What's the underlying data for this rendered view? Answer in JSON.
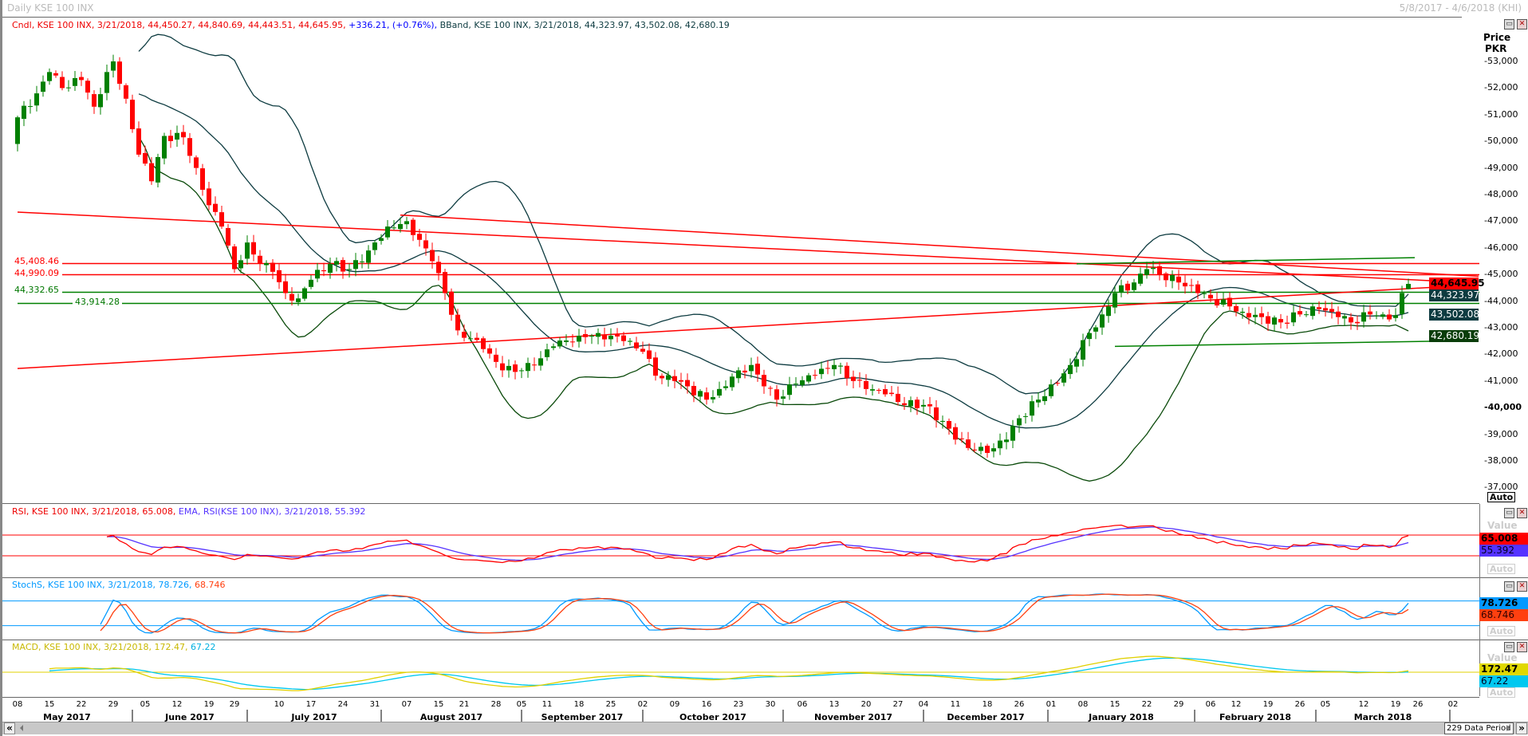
{
  "window": {
    "title": "Daily KSE 100 INX",
    "date_range": "5/8/2017 - 4/6/2018 (KHI)",
    "data_period": "229 Data Period",
    "scroll_left": "«",
    "scroll_right": "»",
    "minimize": "▭",
    "close": "✕"
  },
  "legend": {
    "candle": "Cndl, KSE 100 INX, 3/21/2018, 44,450.27, 44,840.69, 44,443.51, 44,645.95, ",
    "change": "+336.21, (+0.76%), ",
    "bband": "BBand, KSE 100 INX, 3/21/2018, 44,323.97, 43,502.08, 42,680.19",
    "rsi": "RSI, KSE 100 INX, 3/21/2018, 65.008, ",
    "rsi_ema": "EMA, RSI(KSE 100 INX), 3/21/2018, 55.392",
    "stoch_k": "StochS, KSE 100 INX, 3/21/2018, 78.726, ",
    "stoch_d": "68.746",
    "macd": "MACD, KSE 100 INX, 3/21/2018, 172.47, ",
    "macd_signal": "67.22"
  },
  "axis": {
    "price_label": "Price",
    "currency_label": "PKR",
    "auto": "Auto",
    "value_label": "Value"
  },
  "value_boxes": {
    "close": "44,645.95",
    "bb_upper": "44,323.97",
    "bb_mid": "43,502.08",
    "bb_lower": "42,680.19",
    "rsi": "65.008",
    "rsi_ema": "55.392",
    "stoch_k": "78.726",
    "stoch_d": "68.746",
    "macd": "172.47",
    "macd_signal": "67.22"
  },
  "level_labels": {
    "r1": "45,408.46",
    "r2": "44,990.09",
    "s1": "44,332.65",
    "s2": "43,914.28"
  },
  "colors": {
    "up": "#008000",
    "down": "#ff0000",
    "bband": "#0d3b40",
    "bband_lower": "#0a4a0a",
    "rsi": "#ff0000",
    "rsi_ema": "#5533ff",
    "stoch_k": "#0099ff",
    "stoch_d": "#ff4010",
    "macd": "#e0d000",
    "macd_signal": "#00c8f0"
  },
  "chart_data": {
    "type": "candlestick",
    "title": "Daily KSE 100 INX",
    "ylabel": "Price PKR",
    "ylim": [
      36500,
      54200
    ],
    "yticks": [
      "37,000",
      "38,000",
      "39,000",
      "40,000",
      "41,000",
      "42,000",
      "43,000",
      "44,000",
      "45,000",
      "46,000",
      "47,000",
      "48,000",
      "49,000",
      "50,000",
      "51,000",
      "52,000",
      "53,000"
    ],
    "ytick_values": [
      37000,
      38000,
      39000,
      40000,
      41000,
      42000,
      43000,
      44000,
      45000,
      46000,
      47000,
      48000,
      49000,
      50000,
      51000,
      52000,
      53000
    ],
    "bars_total": 229,
    "close_keyframes": [
      [
        0,
        50900
      ],
      [
        3,
        51800
      ],
      [
        5,
        52600
      ],
      [
        7,
        52000
      ],
      [
        10,
        52300
      ],
      [
        12,
        51300
      ],
      [
        14,
        52600
      ],
      [
        15,
        53000
      ],
      [
        17,
        51600
      ],
      [
        19,
        49500
      ],
      [
        21,
        48500
      ],
      [
        23,
        50200
      ],
      [
        26,
        50150
      ],
      [
        28,
        49000
      ],
      [
        30,
        47600
      ],
      [
        32,
        46800
      ],
      [
        34,
        45200
      ],
      [
        36,
        46200
      ],
      [
        38,
        45400
      ],
      [
        40,
        45100
      ],
      [
        42,
        44300
      ],
      [
        44,
        44100
      ],
      [
        46,
        44800
      ],
      [
        49,
        45400
      ],
      [
        52,
        45200
      ],
      [
        55,
        45900
      ],
      [
        58,
        46800
      ],
      [
        61,
        47000
      ],
      [
        63,
        46300
      ],
      [
        65,
        45500
      ],
      [
        67,
        44300
      ],
      [
        69,
        42900
      ],
      [
        71,
        42600
      ],
      [
        73,
        42200
      ],
      [
        76,
        41400
      ],
      [
        79,
        41400
      ],
      [
        81,
        41600
      ],
      [
        84,
        42300
      ],
      [
        88,
        42700
      ],
      [
        91,
        42800
      ],
      [
        95,
        42500
      ],
      [
        98,
        42100
      ],
      [
        100,
        41200
      ],
      [
        103,
        41000
      ],
      [
        105,
        40800
      ],
      [
        108,
        40300
      ],
      [
        110,
        40700
      ],
      [
        113,
        41400
      ],
      [
        115,
        41600
      ],
      [
        117,
        40800
      ],
      [
        119,
        40300
      ],
      [
        122,
        40900
      ],
      [
        125,
        41200
      ],
      [
        128,
        41600
      ],
      [
        131,
        41000
      ],
      [
        133,
        40700
      ],
      [
        136,
        40500
      ],
      [
        139,
        40100
      ],
      [
        142,
        40100
      ],
      [
        145,
        39500
      ],
      [
        147,
        38800
      ],
      [
        150,
        38400
      ],
      [
        152,
        38300
      ],
      [
        155,
        38800
      ],
      [
        157,
        39600
      ],
      [
        160,
        40300
      ],
      [
        163,
        40900
      ],
      [
        165,
        41600
      ],
      [
        168,
        42800
      ],
      [
        170,
        43500
      ],
      [
        172,
        44300
      ],
      [
        175,
        44700
      ],
      [
        177,
        45200
      ],
      [
        179,
        45000
      ],
      [
        182,
        44700
      ],
      [
        185,
        44300
      ],
      [
        187,
        44100
      ],
      [
        190,
        43800
      ],
      [
        192,
        43600
      ],
      [
        195,
        43400
      ],
      [
        198,
        43200
      ],
      [
        201,
        43500
      ],
      [
        204,
        43700
      ],
      [
        207,
        43400
      ],
      [
        209,
        43200
      ],
      [
        212,
        43500
      ],
      [
        214,
        43500
      ],
      [
        216,
        43470
      ],
      [
        217,
        44300
      ],
      [
        218,
        44645.95
      ]
    ],
    "last_candle": {
      "date": "3/21/2018",
      "open": 44450.27,
      "high": 44840.69,
      "low": 44443.51,
      "close": 44645.95
    },
    "horizontal_levels": [
      {
        "key": "r1",
        "value": 45408.46,
        "color": "red",
        "from_bar": 7
      },
      {
        "key": "r2",
        "value": 44990.09,
        "color": "red",
        "from_bar": 7
      },
      {
        "key": "s1",
        "value": 44332.65,
        "color": "green",
        "from_bar": 7
      },
      {
        "key": "s2",
        "value": 43914.28,
        "color": "green",
        "from_bar": 0
      }
    ],
    "trendlines": [
      {
        "color": "red",
        "from": [
          0,
          47340
        ],
        "to": [
          229,
          44680
        ]
      },
      {
        "color": "red",
        "from": [
          60,
          47230
        ],
        "to": [
          229,
          44930
        ]
      },
      {
        "color": "red",
        "from": [
          0,
          41470
        ],
        "to": [
          229,
          44617
        ]
      },
      {
        "color": "green",
        "from": [
          166,
          45400
        ],
        "to": [
          219,
          45630
        ]
      },
      {
        "color": "green",
        "from": [
          172,
          42300
        ],
        "to": [
          229,
          42520
        ]
      }
    ],
    "indicators": {
      "bband": {
        "period": 20,
        "stdev": 2
      },
      "rsi": {
        "period": 14,
        "ema": 9,
        "levels": [
          70,
          30
        ]
      },
      "stoch": {
        "period": 14,
        "smooth": 3,
        "levels": [
          80,
          20
        ]
      },
      "macd": {
        "fast": 12,
        "slow": 26,
        "signal": 9
      }
    },
    "x_ticks": [
      [
        "08",
        0
      ],
      [
        "15",
        5
      ],
      [
        "22",
        10
      ],
      [
        "29",
        15
      ],
      [
        "05",
        20
      ],
      [
        "12",
        25
      ],
      [
        "19",
        30
      ],
      [
        "29",
        34
      ],
      [
        "10",
        41
      ],
      [
        "17",
        46
      ],
      [
        "24",
        51
      ],
      [
        "31",
        56
      ],
      [
        "07",
        61
      ],
      [
        "15",
        66
      ],
      [
        "21",
        70
      ],
      [
        "28",
        75
      ],
      [
        "05",
        79
      ],
      [
        "11",
        83
      ],
      [
        "18",
        88
      ],
      [
        "25",
        93
      ],
      [
        "02",
        98
      ],
      [
        "09",
        103
      ],
      [
        "16",
        108
      ],
      [
        "23",
        113
      ],
      [
        "30",
        118
      ],
      [
        "06",
        123
      ],
      [
        "13",
        128
      ],
      [
        "20",
        133
      ],
      [
        "27",
        138
      ],
      [
        "04",
        142
      ],
      [
        "11",
        147
      ],
      [
        "18",
        152
      ],
      [
        "26",
        157
      ],
      [
        "01",
        162
      ],
      [
        "08",
        167
      ],
      [
        "15",
        172
      ],
      [
        "22",
        177
      ],
      [
        "29",
        182
      ],
      [
        "06",
        187
      ],
      [
        "12",
        191
      ],
      [
        "19",
        196
      ],
      [
        "26",
        201
      ],
      [
        "05",
        205
      ],
      [
        "12",
        211
      ],
      [
        "19",
        216
      ],
      [
        "26",
        219.5
      ],
      [
        "02",
        225
      ]
    ],
    "months": [
      [
        "May 2017",
        -2.5,
        18
      ],
      [
        "June 2017",
        18,
        36
      ],
      [
        "July 2017",
        36,
        57
      ],
      [
        "August 2017",
        57,
        79
      ],
      [
        "September 2017",
        79,
        98
      ],
      [
        "October 2017",
        98,
        120
      ],
      [
        "November 2017",
        120,
        142
      ],
      [
        "December 2017",
        142,
        161.5
      ],
      [
        "January 2018",
        161.5,
        184.5
      ],
      [
        "February 2018",
        184.5,
        203.5
      ],
      [
        "March 2018",
        203.5,
        224.5
      ]
    ]
  }
}
